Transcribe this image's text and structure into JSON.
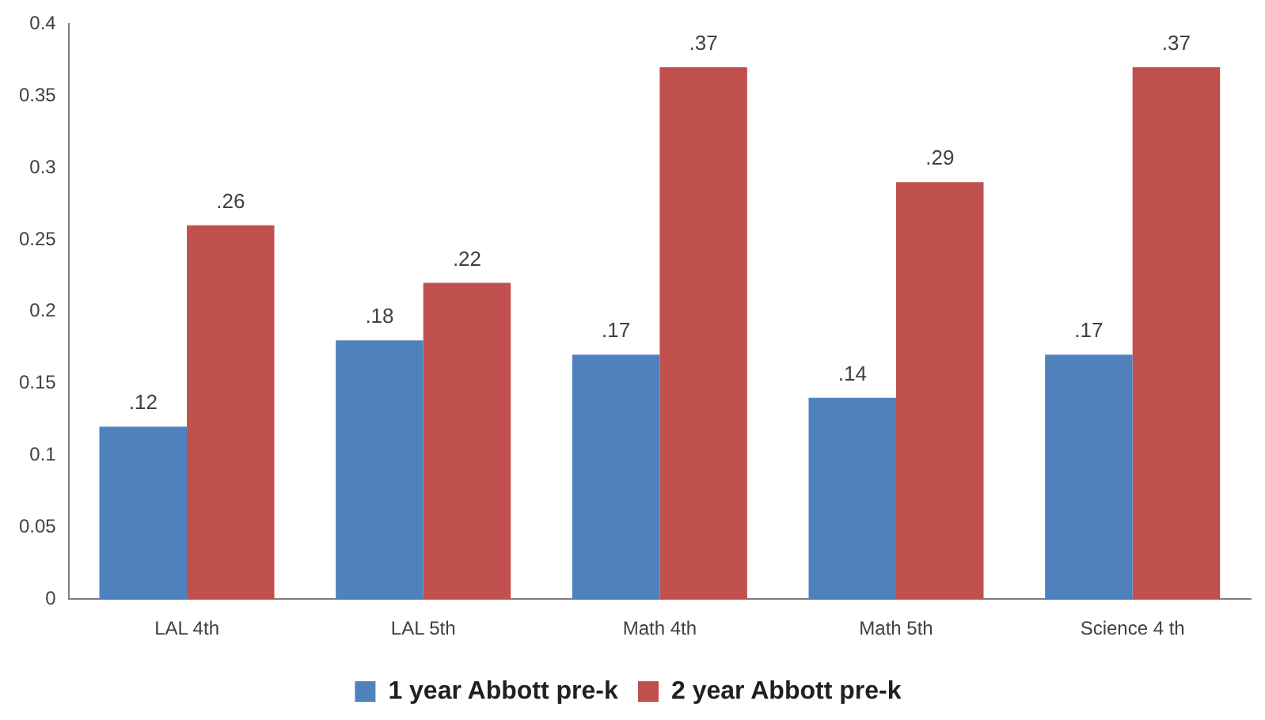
{
  "chart_data": {
    "type": "bar",
    "categories": [
      "LAL 4th",
      "LAL 5th",
      "Math 4th",
      "Math 5th",
      "Science 4 th"
    ],
    "series": [
      {
        "name": "1 year Abbott pre-k",
        "color": "#4f81bd",
        "values": [
          0.12,
          0.18,
          0.17,
          0.14,
          0.17
        ],
        "value_labels": [
          ".12",
          ".18",
          ".17",
          ".14",
          ".17"
        ]
      },
      {
        "name": "2 year Abbott pre-k",
        "color": "#c0504d",
        "values": [
          0.26,
          0.22,
          0.37,
          0.29,
          0.37
        ],
        "value_labels": [
          ".26",
          ".22",
          ".37",
          ".29",
          ".37"
        ]
      }
    ],
    "ylim": [
      0,
      0.4
    ],
    "yticks": [
      0,
      0.05,
      0.1,
      0.15,
      0.2,
      0.25,
      0.3,
      0.35,
      0.4
    ],
    "grid": false,
    "legend": "bottom"
  }
}
